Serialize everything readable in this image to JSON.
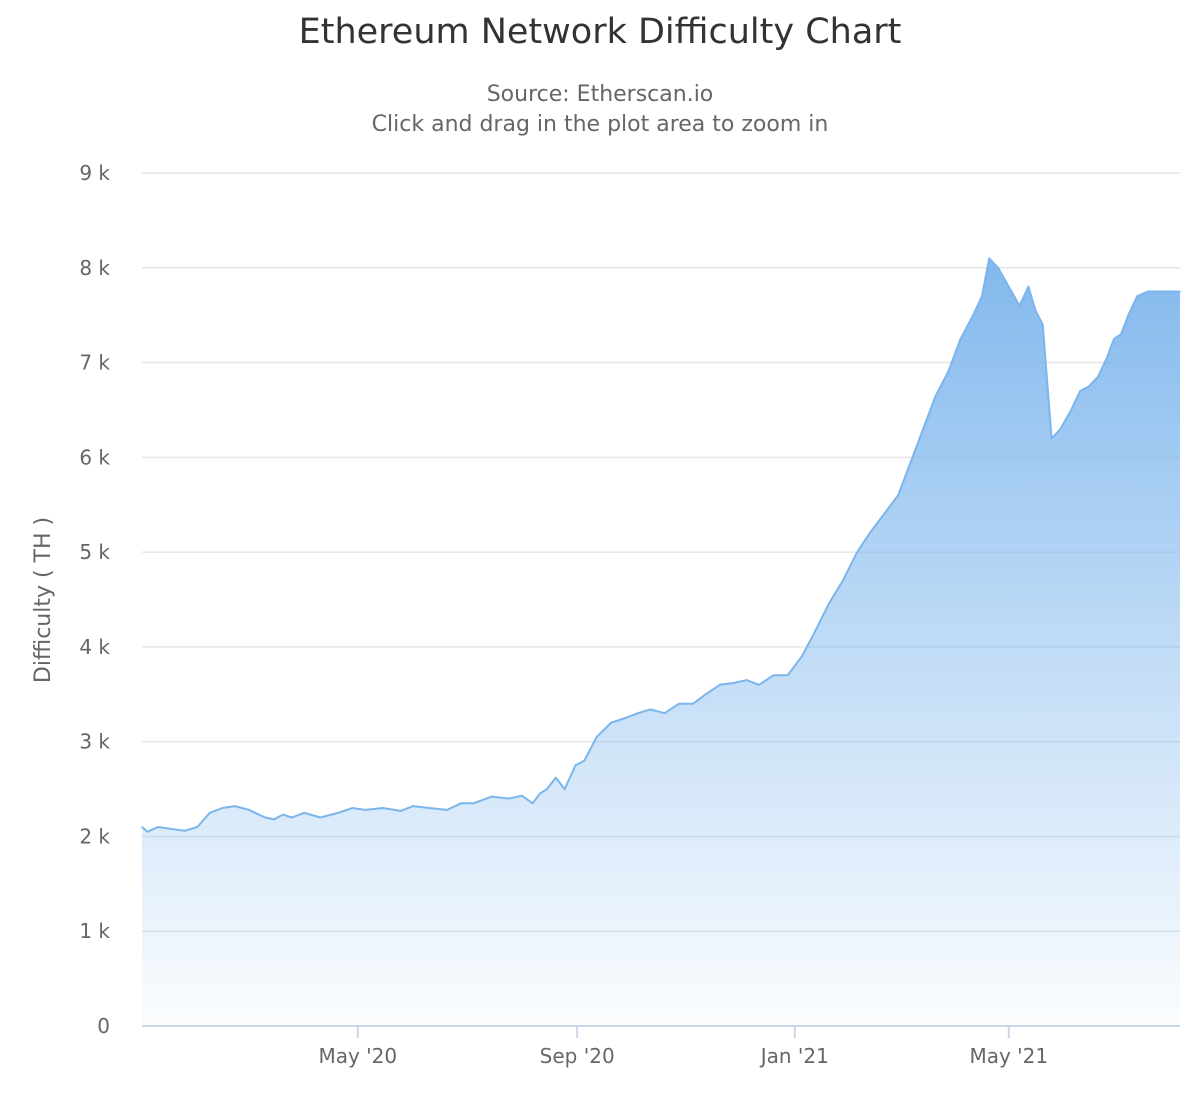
{
  "title": "Ethereum Network Difficulty Chart",
  "subtitle": "Source: Etherscan.io",
  "zoom_hint": "Click and drag in the plot area to zoom in",
  "colors": {
    "line": "#7cb5ec",
    "grid": "#e6e6e6",
    "axis": "#ccd6eb",
    "text": "#666666"
  },
  "chart_data": {
    "type": "area",
    "title": "Ethereum Network Difficulty Chart",
    "subtitle": "Source: Etherscan.io",
    "xlabel": "",
    "ylabel": "Difficulty ( TH )",
    "xlim": [
      "2020-01-01",
      "2021-08-05"
    ],
    "ylim": [
      0,
      9000
    ],
    "yticks": [
      0,
      1000,
      2000,
      3000,
      4000,
      5000,
      6000,
      7000,
      8000,
      9000
    ],
    "ytick_labels": [
      "0",
      "1 k",
      "2 k",
      "3 k",
      "4 k",
      "5 k",
      "6 k",
      "7 k",
      "8 k",
      "9 k"
    ],
    "xticks": [
      "2020-05-01",
      "2020-09-01",
      "2021-01-01",
      "2021-05-01"
    ],
    "xtick_labels": [
      "May '20",
      "Sep '20",
      "Jan '21",
      "May '21"
    ],
    "grid": true,
    "legend": "none",
    "series": [
      {
        "x": [
          "2020-01-01",
          "2020-01-04",
          "2020-01-10",
          "2020-01-17",
          "2020-01-25",
          "2020-02-01",
          "2020-02-08",
          "2020-02-15",
          "2020-02-22",
          "2020-03-01",
          "2020-03-10",
          "2020-03-15",
          "2020-03-20",
          "2020-03-25",
          "2020-04-01",
          "2020-04-10",
          "2020-04-20",
          "2020-04-28",
          "2020-05-05",
          "2020-05-15",
          "2020-05-25",
          "2020-06-01",
          "2020-06-10",
          "2020-06-20",
          "2020-06-28",
          "2020-07-05",
          "2020-07-15",
          "2020-07-25",
          "2020-08-01",
          "2020-08-07",
          "2020-08-11",
          "2020-08-15",
          "2020-08-20",
          "2020-08-25",
          "2020-08-31",
          "2020-09-05",
          "2020-09-12",
          "2020-09-20",
          "2020-09-28",
          "2020-10-05",
          "2020-10-12",
          "2020-10-20",
          "2020-10-28",
          "2020-11-05",
          "2020-11-12",
          "2020-11-20",
          "2020-11-28",
          "2020-12-05",
          "2020-12-12",
          "2020-12-20",
          "2020-12-28",
          "2021-01-05",
          "2021-01-12",
          "2021-01-20",
          "2021-01-28",
          "2021-02-05",
          "2021-02-12",
          "2021-02-20",
          "2021-02-28",
          "2021-03-07",
          "2021-03-14",
          "2021-03-21",
          "2021-03-28",
          "2021-04-04",
          "2021-04-11",
          "2021-04-16",
          "2021-04-20",
          "2021-04-25",
          "2021-05-01",
          "2021-05-07",
          "2021-05-12",
          "2021-05-16",
          "2021-05-20",
          "2021-05-25",
          "2021-05-30",
          "2021-06-05",
          "2021-06-10",
          "2021-06-15",
          "2021-06-20",
          "2021-06-25",
          "2021-06-29",
          "2021-07-03",
          "2021-07-07",
          "2021-07-12",
          "2021-07-18",
          "2021-07-24",
          "2021-07-28",
          "2021-08-01",
          "2021-08-05"
        ],
        "y": [
          2100,
          2050,
          2100,
          2080,
          2060,
          2100,
          2250,
          2300,
          2320,
          2280,
          2200,
          2180,
          2230,
          2200,
          2250,
          2200,
          2250,
          2300,
          2280,
          2300,
          2270,
          2320,
          2300,
          2280,
          2350,
          2350,
          2420,
          2400,
          2430,
          2350,
          2450,
          2500,
          2620,
          2500,
          2750,
          2800,
          3050,
          3200,
          3250,
          3300,
          3340,
          3300,
          3400,
          3400,
          3500,
          3600,
          3620,
          3650,
          3600,
          3700,
          3700,
          3900,
          4150,
          4450,
          4700,
          5000,
          5200,
          5400,
          5600,
          5950,
          6300,
          6650,
          6900,
          7250,
          7500,
          7700,
          8100,
          8000,
          7800,
          7600,
          7800,
          7550,
          7400,
          6200,
          6300,
          6500,
          6700,
          6750,
          6850,
          7050,
          7250,
          7300,
          7500,
          7700,
          7750,
          7750,
          7750,
          7750,
          7750
        ]
      }
    ]
  }
}
